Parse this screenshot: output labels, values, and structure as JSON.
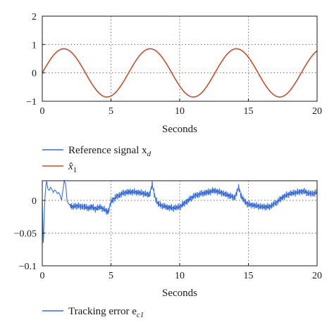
{
  "chart_data": [
    {
      "type": "line",
      "xlabel": "Seconds",
      "ylabel": "",
      "xlim": [
        0,
        20
      ],
      "ylim": [
        -1,
        2
      ],
      "xticks": [
        "0",
        "5",
        "10",
        "15",
        "20"
      ],
      "yticks": [
        "−1",
        "0",
        "1",
        "2"
      ],
      "grid": true,
      "legend_placement": "below",
      "legend": [
        {
          "label": "Reference signal x",
          "subscript": "d",
          "color": "#3b6fd4"
        },
        {
          "label": "x̂",
          "subscript": "1",
          "color": "#c8552a"
        }
      ],
      "series": [
        {
          "name": "Reference signal x_d",
          "color": "#3b6fd4",
          "function": "0.85*sin(t)",
          "x_range": [
            0,
            20
          ]
        },
        {
          "name": "x̂_1",
          "color": "#c8552a",
          "function": "0.85*sin(t)",
          "x_range": [
            0,
            20
          ]
        }
      ]
    },
    {
      "type": "line",
      "xlabel": "Seconds",
      "ylabel": "",
      "xlim": [
        0,
        20
      ],
      "ylim": [
        -0.1,
        0.03
      ],
      "xticks": [
        "0",
        "5",
        "10",
        "15",
        "20"
      ],
      "yticks": [
        "−0.1",
        "−0.05",
        "0"
      ],
      "grid": true,
      "legend_placement": "below",
      "legend": [
        {
          "label": "Tracking error e",
          "subscript": "c1",
          "color": "#3b6fd4"
        }
      ],
      "series": [
        {
          "name": "Tracking error e_c1",
          "color": "#3b6fd4",
          "x": [
            0,
            0.03,
            0.07,
            0.1,
            0.14,
            0.2,
            0.26,
            0.32,
            0.4,
            0.5,
            0.6,
            0.7,
            0.8,
            0.9,
            1.0,
            1.1,
            1.2,
            1.3,
            1.4,
            1.5,
            1.6,
            1.7,
            1.8,
            1.9,
            2.0,
            2.2,
            2.4,
            2.6,
            2.8,
            3.0,
            3.3,
            3.6,
            3.9,
            4.2,
            4.5,
            4.8,
            5.0,
            5.3,
            5.6,
            6.0,
            6.5,
            7.0,
            7.5,
            7.8,
            8.0,
            8.2,
            8.4,
            8.7,
            9.0,
            9.5,
            10.0,
            10.5,
            11.0,
            11.5,
            12.0,
            12.5,
            13.0,
            13.5,
            14.0,
            14.3,
            14.5,
            14.8,
            15.0,
            15.5,
            16.0,
            16.5,
            17.0,
            17.5,
            18.0,
            18.5,
            19.0,
            19.5,
            20.0
          ],
          "values": [
            0.0,
            -0.03,
            -0.068,
            -0.055,
            -0.02,
            0.005,
            0.022,
            0.03,
            0.018,
            0.015,
            0.02,
            0.017,
            0.012,
            0.016,
            0.014,
            0.01,
            0.012,
            0.008,
            0.0,
            0.015,
            0.03,
            0.025,
            0.0,
            -0.005,
            -0.007,
            -0.01,
            -0.009,
            -0.008,
            -0.01,
            -0.009,
            -0.012,
            -0.01,
            -0.013,
            -0.01,
            -0.014,
            -0.018,
            -0.002,
            0.004,
            0.008,
            0.012,
            0.013,
            0.012,
            0.01,
            0.008,
            0.025,
            0.005,
            -0.005,
            -0.008,
            -0.01,
            -0.012,
            -0.01,
            -0.002,
            0.006,
            0.01,
            0.012,
            0.015,
            0.012,
            0.008,
            0.004,
            0.02,
            0.005,
            -0.003,
            -0.006,
            -0.008,
            -0.01,
            -0.01,
            -0.004,
            0.005,
            0.01,
            0.012,
            0.014,
            0.01,
            0.012
          ],
          "noise_amplitude": 0.006
        }
      ]
    }
  ]
}
